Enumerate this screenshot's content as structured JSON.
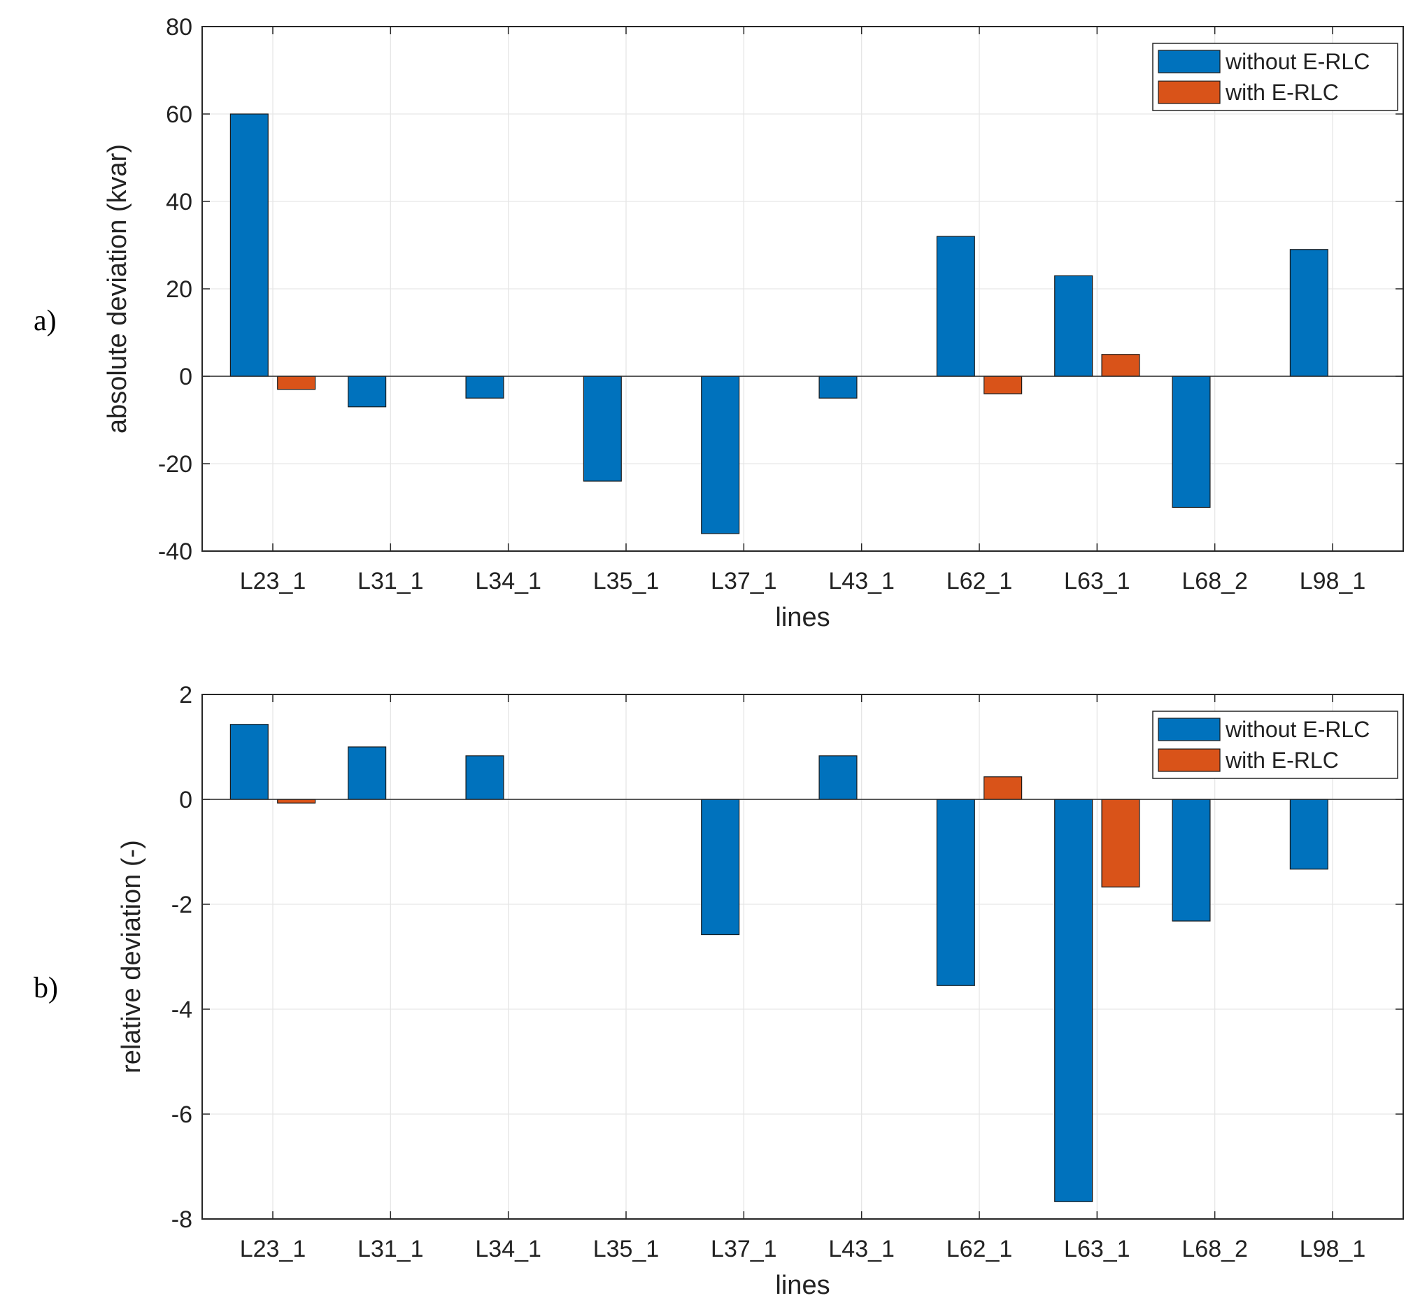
{
  "chart_data": [
    {
      "type": "bar",
      "panel_label": "a)",
      "categories": [
        "L23_1",
        "L31_1",
        "L34_1",
        "L35_1",
        "L37_1",
        "L43_1",
        "L62_1",
        "L63_1",
        "L68_2",
        "L98_1"
      ],
      "series": [
        {
          "name": "without E-RLC",
          "color": "#0072BD",
          "values": [
            60,
            -7,
            -5,
            -24,
            -36,
            -5,
            32,
            23,
            -30,
            29
          ]
        },
        {
          "name": "with E-RLC",
          "color": "#D95319",
          "values": [
            -3,
            0,
            0,
            0,
            0,
            0,
            -4,
            5,
            0,
            0
          ]
        }
      ],
      "xlabel": "lines",
      "ylabel": "absolute deviation (kvar)",
      "ylim": [
        -40,
        80
      ],
      "yticks": [
        -40,
        -20,
        0,
        20,
        40,
        60,
        80
      ],
      "grid": true,
      "legend": "top-right"
    },
    {
      "type": "bar",
      "panel_label": "b)",
      "categories": [
        "L23_1",
        "L31_1",
        "L34_1",
        "L35_1",
        "L37_1",
        "L43_1",
        "L62_1",
        "L63_1",
        "L68_2",
        "L98_1"
      ],
      "series": [
        {
          "name": "without E-RLC",
          "color": "#0072BD",
          "values": [
            1.43,
            1.0,
            0.83,
            0,
            -2.58,
            0.83,
            -3.55,
            -7.67,
            -2.32,
            -1.33
          ]
        },
        {
          "name": "with E-RLC",
          "color": "#D95319",
          "values": [
            -0.07,
            0,
            0,
            0,
            0,
            0,
            0.43,
            -1.67,
            0,
            0
          ]
        }
      ],
      "xlabel": "lines",
      "ylabel": "relative deviation (-)",
      "ylim": [
        -8,
        2
      ],
      "yticks": [
        -8,
        -6,
        -4,
        -2,
        0,
        2
      ],
      "grid": true,
      "legend": "top-right"
    }
  ]
}
